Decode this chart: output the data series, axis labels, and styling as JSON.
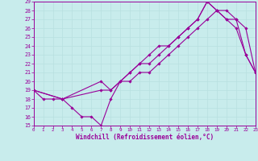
{
  "xlabel": "Windchill (Refroidissement éolien,°C)",
  "xlim": [
    0,
    23
  ],
  "ylim": [
    15,
    29
  ],
  "xticks": [
    0,
    1,
    2,
    3,
    4,
    5,
    6,
    7,
    8,
    9,
    10,
    11,
    12,
    13,
    14,
    15,
    16,
    17,
    18,
    19,
    20,
    21,
    22,
    23
  ],
  "yticks": [
    15,
    16,
    17,
    18,
    19,
    20,
    21,
    22,
    23,
    24,
    25,
    26,
    27,
    28,
    29
  ],
  "bg_color": "#c8ecec",
  "line_color": "#990099",
  "grid_color": "#b8e0e0",
  "line1_x": [
    0,
    1,
    2,
    3,
    4,
    5,
    6,
    7,
    8,
    9,
    10,
    11,
    12,
    13,
    14,
    15,
    16,
    17,
    18,
    19,
    20,
    21,
    22,
    23
  ],
  "line1_y": [
    19,
    18,
    18,
    18,
    17,
    16,
    16,
    15,
    18,
    20,
    21,
    22,
    22,
    23,
    24,
    25,
    26,
    27,
    29,
    28,
    27,
    26,
    23,
    21
  ],
  "line2_x": [
    0,
    3,
    7,
    8,
    9,
    10,
    11,
    12,
    13,
    14,
    15,
    16,
    17,
    18,
    19,
    20,
    21,
    22,
    23
  ],
  "line2_y": [
    19,
    18,
    19,
    19,
    20,
    20,
    21,
    21,
    22,
    23,
    24,
    25,
    26,
    27,
    28,
    27,
    27,
    23,
    21
  ],
  "line3_x": [
    0,
    3,
    7,
    8,
    10,
    11,
    12,
    13,
    14,
    15,
    16,
    17,
    18,
    19,
    20,
    21,
    22,
    23
  ],
  "line3_y": [
    19,
    18,
    20,
    19,
    21,
    22,
    23,
    24,
    24,
    25,
    26,
    27,
    29,
    28,
    28,
    27,
    26,
    21
  ]
}
